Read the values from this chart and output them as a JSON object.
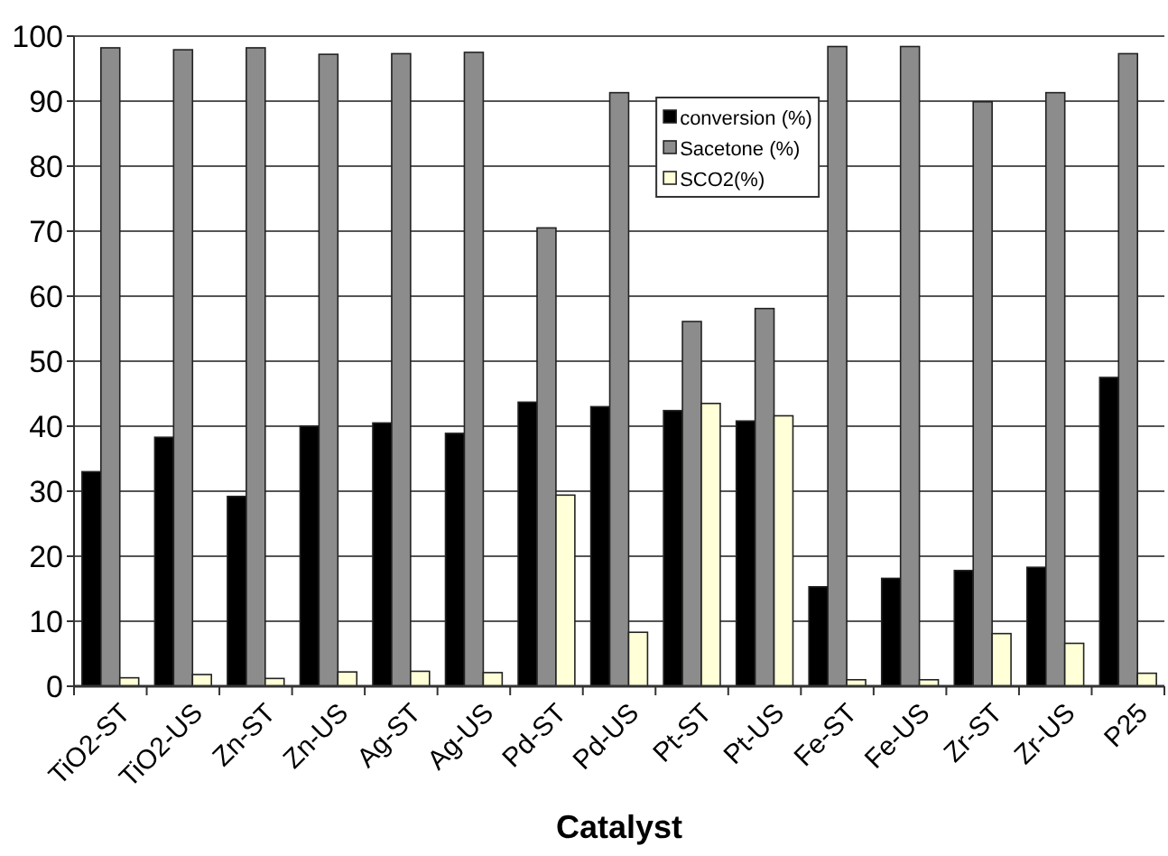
{
  "chart_data": {
    "type": "bar",
    "xlabel": "Catalyst",
    "categories": [
      "TiO2-ST",
      "TiO2-US",
      "Zn-ST",
      "Zn-US",
      "Ag-ST",
      "Ag-US",
      "Pd-ST",
      "Pd-US",
      "Pt-ST",
      "Pt-US",
      "Fe-ST",
      "Fe-US",
      "Zr-ST",
      "Zr-US",
      "P25"
    ],
    "series": [
      {
        "name": "conversion (%)",
        "color": "#000000",
        "values": [
          33,
          38.3,
          29.2,
          40,
          40.5,
          38.9,
          43.7,
          43,
          42.4,
          40.8,
          15.3,
          16.6,
          17.8,
          18.3,
          47.5
        ]
      },
      {
        "name": "Sacetone (%)",
        "color": "#8c8c8c",
        "values": [
          98.2,
          97.9,
          98.2,
          97.2,
          97.3,
          97.5,
          70.5,
          91.3,
          56.1,
          58.1,
          98.4,
          98.4,
          89.9,
          91.3,
          97.3
        ]
      },
      {
        "name": "SCO2(%)",
        "color": "#ffffd8",
        "values": [
          1.3,
          1.8,
          1.2,
          2.2,
          2.3,
          2.1,
          29.4,
          8.3,
          43.5,
          41.6,
          1,
          1,
          8.1,
          6.6,
          2
        ]
      }
    ],
    "ylim": [
      0,
      100
    ],
    "yticks": [
      0,
      10,
      20,
      30,
      40,
      50,
      60,
      70,
      80,
      90,
      100
    ],
    "grid": "y",
    "legend": "top"
  }
}
